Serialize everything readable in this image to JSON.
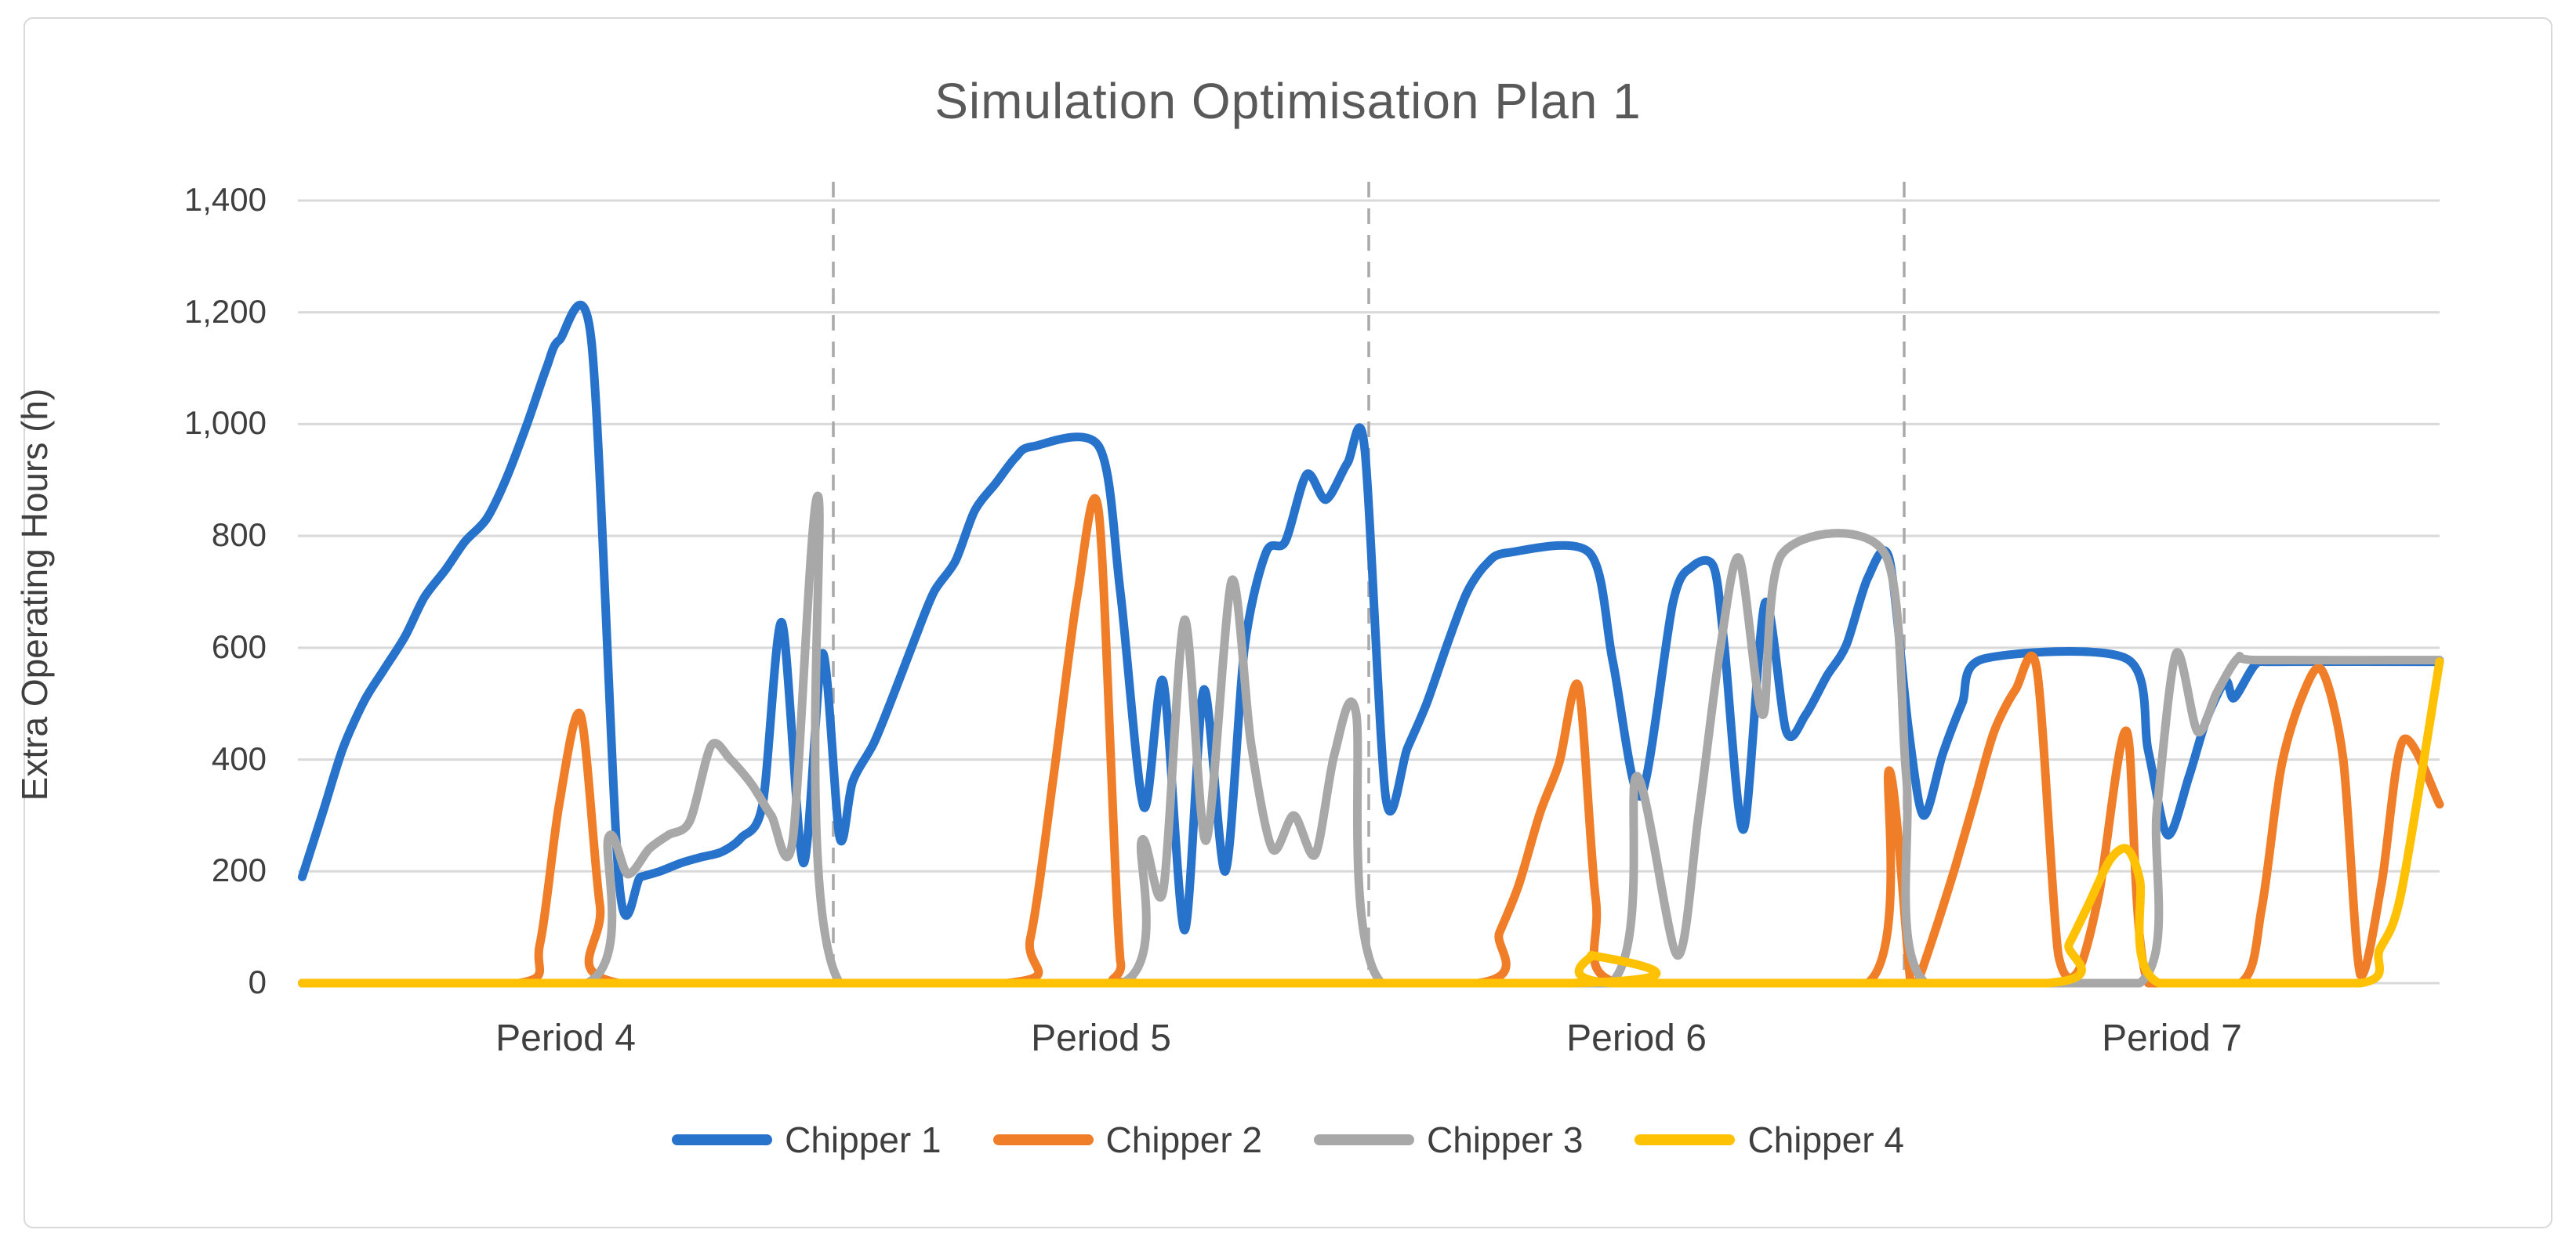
{
  "chart": {
    "title": "Simulation Optimisation Plan 1",
    "y_axis": {
      "title": "Extra Operating Hours (h)",
      "tick_labels": [
        "0",
        "200",
        "400",
        "600",
        "800",
        "1,000",
        "1,200",
        "1,400"
      ]
    },
    "x_axis": {
      "labels": [
        "Period 4",
        "Period 5",
        "Period 6",
        "Period 7"
      ]
    },
    "legend": [
      {
        "label": "Chipper 1",
        "color": "#2772CB"
      },
      {
        "label": "Chipper 2",
        "color": "#F07E28"
      },
      {
        "label": "Chipper 3",
        "color": "#A8A8A8"
      },
      {
        "label": "Chipper 4",
        "color": "#FFC103"
      }
    ],
    "colors": {
      "grid": "#D9D9D9",
      "separator": "#A9A9A9",
      "title_text": "#595959",
      "axis_text": "#3F3F3F"
    }
  },
  "chart_data": {
    "type": "line",
    "title": "Simulation Optimisation Plan 1",
    "xlabel": "",
    "ylabel": "Extra Operating Hours (h)",
    "ylim": [
      0,
      1400
    ],
    "y_tick_step": 200,
    "grid": "horizontal",
    "legend_position": "bottom",
    "categories": [
      "Period 4",
      "Period 5",
      "Period 6",
      "Period 7"
    ],
    "separator_positions_pct": [
      25,
      50,
      75
    ],
    "x_unit": "percent of x-axis span (weekly points within Periods 4-7)",
    "line_style": "smoothed",
    "series": [
      {
        "name": "Chipper 1",
        "color": "#2772CB",
        "points": [
          [
            0.2,
            190
          ],
          [
            1.2,
            310
          ],
          [
            2.1,
            420
          ],
          [
            3.1,
            505
          ],
          [
            4,
            560
          ],
          [
            5,
            620
          ],
          [
            5.9,
            690
          ],
          [
            6.9,
            740
          ],
          [
            7.8,
            790
          ],
          [
            8.8,
            830
          ],
          [
            9.7,
            900
          ],
          [
            10.7,
            1000
          ],
          [
            11.6,
            1100
          ],
          [
            12.2,
            1150
          ],
          [
            13.7,
            1150
          ],
          [
            15,
            180
          ],
          [
            16,
            190
          ],
          [
            16.9,
            200
          ],
          [
            17.9,
            215
          ],
          [
            18.8,
            225
          ],
          [
            19.8,
            235
          ],
          [
            20.7,
            260
          ],
          [
            21.7,
            320
          ],
          [
            22.6,
            645
          ],
          [
            23.6,
            215
          ],
          [
            24.5,
            590
          ],
          [
            25.3,
            260
          ],
          [
            25.9,
            360
          ],
          [
            26.9,
            430
          ],
          [
            27.8,
            515
          ],
          [
            28.8,
            615
          ],
          [
            29.7,
            700
          ],
          [
            30.7,
            755
          ],
          [
            31.6,
            845
          ],
          [
            32.6,
            895
          ],
          [
            33.5,
            940
          ],
          [
            34.3,
            960
          ],
          [
            37.4,
            960
          ],
          [
            38.4,
            700
          ],
          [
            39.5,
            315
          ],
          [
            40.4,
            540
          ],
          [
            41.4,
            95
          ],
          [
            42.3,
            525
          ],
          [
            43.3,
            200
          ],
          [
            44.2,
            600
          ],
          [
            45.2,
            770
          ],
          [
            46.1,
            790
          ],
          [
            47.1,
            910
          ],
          [
            48,
            865
          ],
          [
            49,
            930
          ],
          [
            49.8,
            960
          ],
          [
            50.8,
            330
          ],
          [
            51.8,
            420
          ],
          [
            52.7,
            500
          ],
          [
            53.7,
            610
          ],
          [
            54.6,
            700
          ],
          [
            55.5,
            750
          ],
          [
            56.5,
            770
          ],
          [
            60.3,
            770
          ],
          [
            61.4,
            575
          ],
          [
            62.7,
            335
          ],
          [
            64.2,
            680
          ],
          [
            65.1,
            745
          ],
          [
            66.1,
            745
          ],
          [
            66.6,
            605
          ],
          [
            67.5,
            275
          ],
          [
            68.5,
            680
          ],
          [
            69.5,
            450
          ],
          [
            70.4,
            480
          ],
          [
            71.4,
            550
          ],
          [
            72.3,
            605
          ],
          [
            73.3,
            725
          ],
          [
            74.3,
            760
          ],
          [
            75.2,
            455
          ],
          [
            75.9,
            300
          ],
          [
            76.8,
            410
          ],
          [
            77.7,
            500
          ],
          [
            78.7,
            580
          ],
          [
            85.4,
            580
          ],
          [
            86.4,
            415
          ],
          [
            87.3,
            265
          ],
          [
            88.3,
            370
          ],
          [
            89.1,
            470
          ],
          [
            90,
            540
          ],
          [
            90.4,
            510
          ],
          [
            91.4,
            570
          ],
          [
            92.3,
            575
          ],
          [
            100,
            575
          ]
        ]
      },
      {
        "name": "Chipper 2",
        "color": "#F07E28",
        "points": [
          [
            0.2,
            0
          ],
          [
            10.3,
            0
          ],
          [
            11.3,
            70
          ],
          [
            12.2,
            320
          ],
          [
            13.2,
            480
          ],
          [
            14.1,
            140
          ],
          [
            15,
            0
          ],
          [
            33.1,
            0
          ],
          [
            34.2,
            80
          ],
          [
            35.3,
            375
          ],
          [
            36.4,
            695
          ],
          [
            37.4,
            840
          ],
          [
            38.4,
            40
          ],
          [
            39.3,
            0
          ],
          [
            55.1,
            0
          ],
          [
            56.1,
            90
          ],
          [
            57,
            175
          ],
          [
            58,
            305
          ],
          [
            58.9,
            395
          ],
          [
            59.8,
            530
          ],
          [
            60.6,
            150
          ],
          [
            61.6,
            0
          ],
          [
            73.3,
            0
          ],
          [
            74.3,
            380
          ],
          [
            75.3,
            0
          ],
          [
            75.6,
            0
          ],
          [
            76.5,
            100
          ],
          [
            77.4,
            210
          ],
          [
            78.3,
            330
          ],
          [
            79.2,
            450
          ],
          [
            80.2,
            525
          ],
          [
            81.2,
            560
          ],
          [
            82.2,
            50
          ],
          [
            83.1,
            20
          ],
          [
            84.1,
            160
          ],
          [
            85.4,
            450
          ],
          [
            86.4,
            0
          ],
          [
            90.7,
            0
          ],
          [
            91.7,
            135
          ],
          [
            92.6,
            385
          ],
          [
            93.6,
            515
          ],
          [
            94.5,
            560
          ],
          [
            95.5,
            400
          ],
          [
            96.3,
            15
          ],
          [
            97.3,
            180
          ],
          [
            98.3,
            435
          ],
          [
            100,
            320
          ]
        ]
      },
      {
        "name": "Chipper 3",
        "color": "#A8A8A8",
        "points": [
          [
            0.2,
            0
          ],
          [
            13.5,
            0
          ],
          [
            14.5,
            260
          ],
          [
            15.4,
            195
          ],
          [
            16.4,
            240
          ],
          [
            17.3,
            265
          ],
          [
            18.3,
            290
          ],
          [
            19.3,
            425
          ],
          [
            20.2,
            400
          ],
          [
            21.2,
            355
          ],
          [
            22.1,
            300
          ],
          [
            23.1,
            255
          ],
          [
            24.3,
            870
          ],
          [
            25.3,
            0
          ],
          [
            38.5,
            0
          ],
          [
            39.4,
            255
          ],
          [
            40.4,
            165
          ],
          [
            41.4,
            650
          ],
          [
            42.4,
            255
          ],
          [
            43.6,
            720
          ],
          [
            44.5,
            430
          ],
          [
            45.5,
            240
          ],
          [
            46.5,
            300
          ],
          [
            47.5,
            230
          ],
          [
            48.4,
            410
          ],
          [
            49.4,
            485
          ],
          [
            50.6,
            0
          ],
          [
            61.3,
            0
          ],
          [
            62.5,
            370
          ],
          [
            64.4,
            50
          ],
          [
            65.4,
            300
          ],
          [
            66.4,
            595
          ],
          [
            67.3,
            760
          ],
          [
            68.4,
            480
          ],
          [
            69.3,
            768
          ],
          [
            74.1,
            768
          ],
          [
            75.1,
            370
          ],
          [
            76,
            0
          ],
          [
            86,
            0
          ],
          [
            86.8,
            310
          ],
          [
            87.7,
            590
          ],
          [
            88.7,
            450
          ],
          [
            89.6,
            520
          ],
          [
            90.6,
            582
          ],
          [
            91.5,
            578
          ],
          [
            100,
            578
          ]
        ]
      },
      {
        "name": "Chipper 4",
        "color": "#FFC103",
        "points": [
          [
            0.2,
            0
          ],
          [
            59.4,
            0
          ],
          [
            60.4,
            50
          ],
          [
            61.4,
            0
          ],
          [
            81.7,
            0
          ],
          [
            82.7,
            70
          ],
          [
            83.6,
            140
          ],
          [
            84.6,
            220
          ],
          [
            85.4,
            240
          ],
          [
            86,
            185
          ],
          [
            86.9,
            0
          ],
          [
            96.3,
            0
          ],
          [
            97.2,
            60
          ],
          [
            98.2,
            160
          ],
          [
            100,
            575
          ]
        ]
      }
    ]
  }
}
